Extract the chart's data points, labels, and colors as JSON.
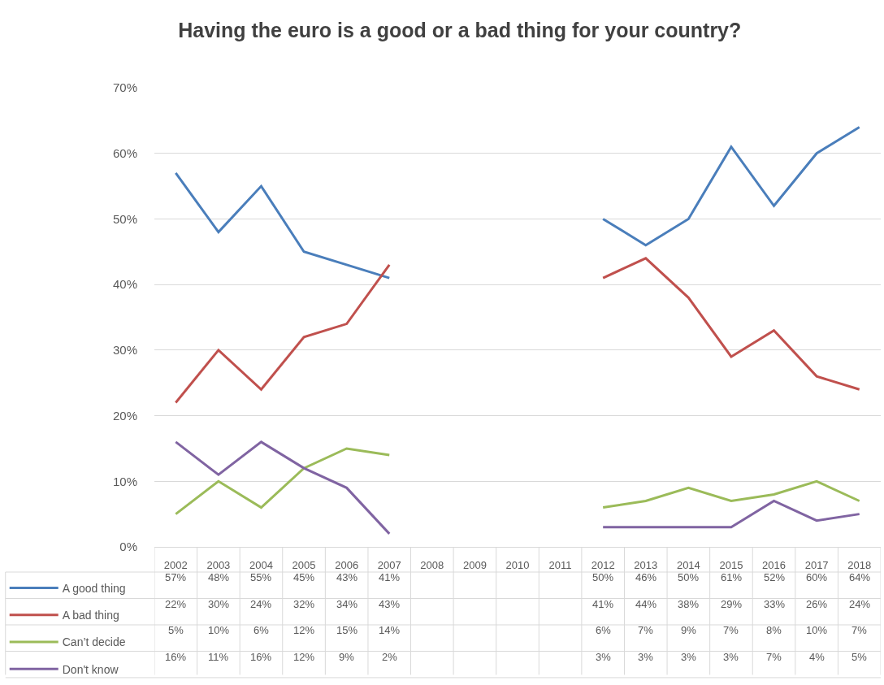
{
  "chart_data": {
    "type": "line",
    "title": "Having the euro is a good or a bad thing for your country?",
    "categories": [
      "2002",
      "2003",
      "2004",
      "2005",
      "2006",
      "2007",
      "2008",
      "2009",
      "2010",
      "2011",
      "2012",
      "2013",
      "2014",
      "2015",
      "2016",
      "2017",
      "2018"
    ],
    "series": [
      {
        "name": "A good thing",
        "color": "#4a7ebb",
        "values": [
          57,
          48,
          55,
          45,
          43,
          41,
          null,
          null,
          null,
          null,
          50,
          46,
          50,
          61,
          52,
          60,
          64
        ],
        "value_labels": [
          "57%",
          "48%",
          "55%",
          "45%",
          "43%",
          "41%",
          null,
          null,
          null,
          null,
          "50%",
          "46%",
          "50%",
          "61%",
          "52%",
          "60%",
          "64%"
        ]
      },
      {
        "name": "A bad thing",
        "color": "#c0504d",
        "values": [
          22,
          30,
          24,
          32,
          34,
          43,
          null,
          null,
          null,
          null,
          41,
          44,
          38,
          29,
          33,
          26,
          24
        ],
        "value_labels": [
          "22%",
          "30%",
          "24%",
          "32%",
          "34%",
          "43%",
          null,
          null,
          null,
          null,
          "41%",
          "44%",
          "38%",
          "29%",
          "33%",
          "26%",
          "24%"
        ]
      },
      {
        "name": "Can’t decide",
        "color": "#9bbb59",
        "values": [
          5,
          10,
          6,
          12,
          15,
          14,
          null,
          null,
          null,
          null,
          6,
          7,
          9,
          7,
          8,
          10,
          7
        ],
        "value_labels": [
          "5%",
          "10%",
          "6%",
          "12%",
          "15%",
          "14%",
          null,
          null,
          null,
          null,
          "6%",
          "7%",
          "9%",
          "7%",
          "8%",
          "10%",
          "7%"
        ]
      },
      {
        "name": "Don't know",
        "color": "#8064a2",
        "values": [
          16,
          11,
          16,
          12,
          9,
          2,
          null,
          null,
          null,
          null,
          3,
          3,
          3,
          3,
          7,
          4,
          5
        ],
        "value_labels": [
          "16%",
          "11%",
          "16%",
          "12%",
          "9%",
          "2%",
          null,
          null,
          null,
          null,
          "3%",
          "3%",
          "3%",
          "3%",
          "7%",
          "4%",
          "5%"
        ]
      }
    ],
    "ylim": [
      0,
      70
    ],
    "yticks": [
      {
        "value": 0,
        "label": "0%"
      },
      {
        "value": 10,
        "label": "10%"
      },
      {
        "value": 20,
        "label": "20%"
      },
      {
        "value": 30,
        "label": "30%"
      },
      {
        "value": 40,
        "label": "40%"
      },
      {
        "value": 50,
        "label": "50%"
      },
      {
        "value": 60,
        "label": "60%"
      },
      {
        "value": 70,
        "label": "70%"
      }
    ],
    "grid": "y",
    "legend": "bottom left",
    "marker": "none",
    "line_style": "solid"
  }
}
